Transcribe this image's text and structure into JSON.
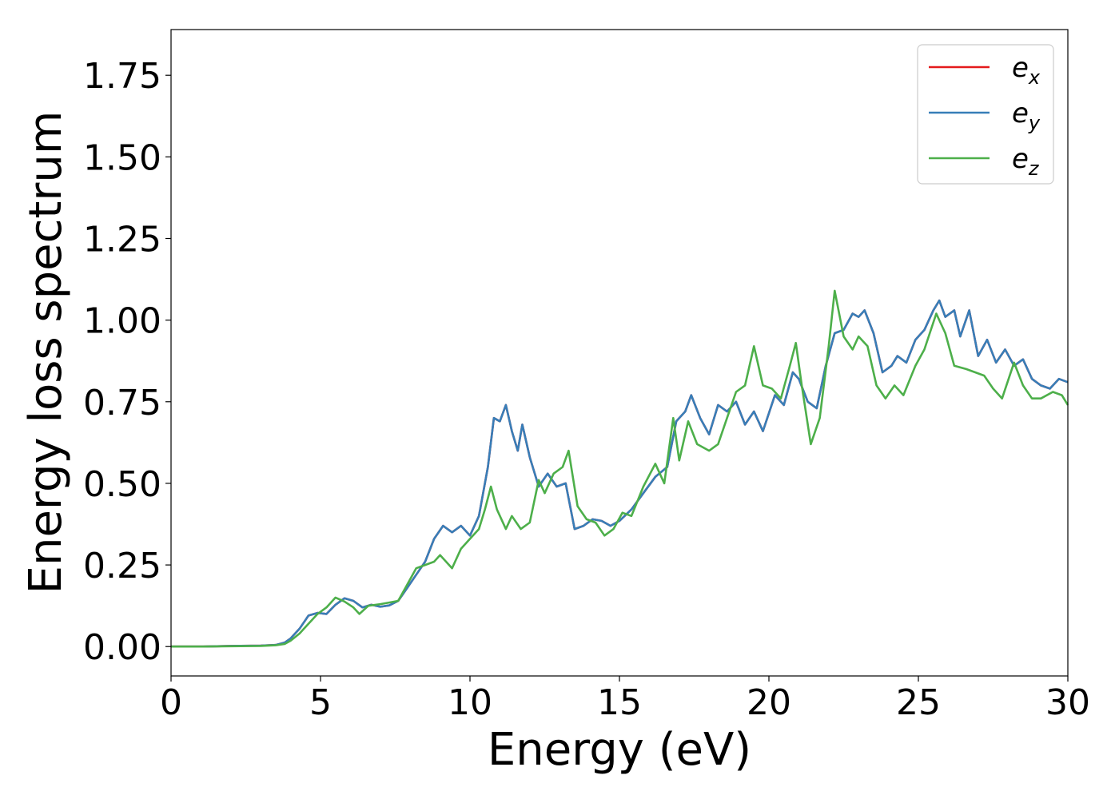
{
  "chart_data": {
    "type": "line",
    "title": "",
    "xlabel": "Energy (eV)",
    "ylabel": "Energy loss spectrum",
    "xlim": [
      0,
      30
    ],
    "ylim": [
      -0.09,
      1.89
    ],
    "xticks": [
      "0",
      "5",
      "10",
      "15",
      "20",
      "25",
      "30"
    ],
    "yticks": [
      "0.00",
      "0.25",
      "0.50",
      "0.75",
      "1.00",
      "1.25",
      "1.50",
      "1.75"
    ],
    "grid": false,
    "legend_position": "top-right",
    "series": [
      {
        "name": "e_x",
        "legend_base": "e",
        "legend_sub": "x",
        "color": "#e41a1c",
        "points": [
          [
            0,
            0
          ],
          [
            1,
            0.0
          ],
          [
            2,
            0.002
          ],
          [
            3,
            0.003
          ],
          [
            3.5,
            0.005
          ],
          [
            3.8,
            0.012
          ],
          [
            4.0,
            0.025
          ],
          [
            4.3,
            0.055
          ],
          [
            4.6,
            0.095
          ],
          [
            4.9,
            0.103
          ],
          [
            5.2,
            0.1
          ],
          [
            5.5,
            0.128
          ],
          [
            5.8,
            0.148
          ],
          [
            6.1,
            0.14
          ],
          [
            6.4,
            0.12
          ],
          [
            6.7,
            0.128
          ],
          [
            7.0,
            0.122
          ],
          [
            7.3,
            0.126
          ],
          [
            7.6,
            0.14
          ],
          [
            7.9,
            0.18
          ],
          [
            8.2,
            0.22
          ],
          [
            8.5,
            0.26
          ],
          [
            8.8,
            0.33
          ],
          [
            9.1,
            0.37
          ],
          [
            9.4,
            0.35
          ],
          [
            9.7,
            0.37
          ],
          [
            10.0,
            0.34
          ],
          [
            10.3,
            0.4
          ],
          [
            10.6,
            0.55
          ],
          [
            10.8,
            0.7
          ],
          [
            11.0,
            0.69
          ],
          [
            11.2,
            0.74
          ],
          [
            11.4,
            0.66
          ],
          [
            11.6,
            0.6
          ],
          [
            11.75,
            0.68
          ],
          [
            12.0,
            0.58
          ],
          [
            12.3,
            0.49
          ],
          [
            12.6,
            0.53
          ],
          [
            12.9,
            0.49
          ],
          [
            13.2,
            0.5
          ],
          [
            13.5,
            0.36
          ],
          [
            13.8,
            0.37
          ],
          [
            14.1,
            0.39
          ],
          [
            14.4,
            0.385
          ],
          [
            14.7,
            0.37
          ],
          [
            15.0,
            0.385
          ],
          [
            15.4,
            0.42
          ],
          [
            15.8,
            0.47
          ],
          [
            16.2,
            0.52
          ],
          [
            16.6,
            0.55
          ],
          [
            16.9,
            0.69
          ],
          [
            17.2,
            0.72
          ],
          [
            17.4,
            0.77
          ],
          [
            17.7,
            0.7
          ],
          [
            18.0,
            0.65
          ],
          [
            18.3,
            0.74
          ],
          [
            18.6,
            0.72
          ],
          [
            18.9,
            0.75
          ],
          [
            19.2,
            0.68
          ],
          [
            19.5,
            0.72
          ],
          [
            19.8,
            0.66
          ],
          [
            20.2,
            0.77
          ],
          [
            20.5,
            0.74
          ],
          [
            20.8,
            0.84
          ],
          [
            21.0,
            0.82
          ],
          [
            21.3,
            0.75
          ],
          [
            21.6,
            0.73
          ],
          [
            21.9,
            0.86
          ],
          [
            22.2,
            0.96
          ],
          [
            22.5,
            0.97
          ],
          [
            22.8,
            1.02
          ],
          [
            23.0,
            1.01
          ],
          [
            23.2,
            1.03
          ],
          [
            23.5,
            0.96
          ],
          [
            23.8,
            0.84
          ],
          [
            24.1,
            0.86
          ],
          [
            24.3,
            0.89
          ],
          [
            24.6,
            0.87
          ],
          [
            24.9,
            0.94
          ],
          [
            25.2,
            0.97
          ],
          [
            25.5,
            1.03
          ],
          [
            25.7,
            1.06
          ],
          [
            25.9,
            1.01
          ],
          [
            26.2,
            1.03
          ],
          [
            26.4,
            0.95
          ],
          [
            26.7,
            1.03
          ],
          [
            27.0,
            0.89
          ],
          [
            27.3,
            0.94
          ],
          [
            27.6,
            0.87
          ],
          [
            27.9,
            0.91
          ],
          [
            28.2,
            0.86
          ],
          [
            28.5,
            0.88
          ],
          [
            28.8,
            0.82
          ],
          [
            29.1,
            0.8
          ],
          [
            29.4,
            0.79
          ],
          [
            29.7,
            0.82
          ],
          [
            30.0,
            0.81
          ]
        ]
      },
      {
        "name": "e_y",
        "legend_base": "e",
        "legend_sub": "y",
        "color": "#377eb8",
        "points": [
          [
            0,
            0
          ],
          [
            1,
            0.0
          ],
          [
            2,
            0.002
          ],
          [
            3,
            0.003
          ],
          [
            3.5,
            0.005
          ],
          [
            3.8,
            0.012
          ],
          [
            4.0,
            0.025
          ],
          [
            4.3,
            0.055
          ],
          [
            4.6,
            0.095
          ],
          [
            4.9,
            0.103
          ],
          [
            5.2,
            0.1
          ],
          [
            5.5,
            0.128
          ],
          [
            5.8,
            0.148
          ],
          [
            6.1,
            0.14
          ],
          [
            6.4,
            0.12
          ],
          [
            6.7,
            0.128
          ],
          [
            7.0,
            0.122
          ],
          [
            7.3,
            0.126
          ],
          [
            7.6,
            0.14
          ],
          [
            7.9,
            0.18
          ],
          [
            8.2,
            0.22
          ],
          [
            8.5,
            0.26
          ],
          [
            8.8,
            0.33
          ],
          [
            9.1,
            0.37
          ],
          [
            9.4,
            0.35
          ],
          [
            9.7,
            0.37
          ],
          [
            10.0,
            0.34
          ],
          [
            10.3,
            0.4
          ],
          [
            10.6,
            0.55
          ],
          [
            10.8,
            0.7
          ],
          [
            11.0,
            0.69
          ],
          [
            11.2,
            0.74
          ],
          [
            11.4,
            0.66
          ],
          [
            11.6,
            0.6
          ],
          [
            11.75,
            0.68
          ],
          [
            12.0,
            0.58
          ],
          [
            12.3,
            0.49
          ],
          [
            12.6,
            0.53
          ],
          [
            12.9,
            0.49
          ],
          [
            13.2,
            0.5
          ],
          [
            13.5,
            0.36
          ],
          [
            13.8,
            0.37
          ],
          [
            14.1,
            0.39
          ],
          [
            14.4,
            0.385
          ],
          [
            14.7,
            0.37
          ],
          [
            15.0,
            0.385
          ],
          [
            15.4,
            0.42
          ],
          [
            15.8,
            0.47
          ],
          [
            16.2,
            0.52
          ],
          [
            16.6,
            0.55
          ],
          [
            16.9,
            0.69
          ],
          [
            17.2,
            0.72
          ],
          [
            17.4,
            0.77
          ],
          [
            17.7,
            0.7
          ],
          [
            18.0,
            0.65
          ],
          [
            18.3,
            0.74
          ],
          [
            18.6,
            0.72
          ],
          [
            18.9,
            0.75
          ],
          [
            19.2,
            0.68
          ],
          [
            19.5,
            0.72
          ],
          [
            19.8,
            0.66
          ],
          [
            20.2,
            0.77
          ],
          [
            20.5,
            0.74
          ],
          [
            20.8,
            0.84
          ],
          [
            21.0,
            0.82
          ],
          [
            21.3,
            0.75
          ],
          [
            21.6,
            0.73
          ],
          [
            21.9,
            0.86
          ],
          [
            22.2,
            0.96
          ],
          [
            22.5,
            0.97
          ],
          [
            22.8,
            1.02
          ],
          [
            23.0,
            1.01
          ],
          [
            23.2,
            1.03
          ],
          [
            23.5,
            0.96
          ],
          [
            23.8,
            0.84
          ],
          [
            24.1,
            0.86
          ],
          [
            24.3,
            0.89
          ],
          [
            24.6,
            0.87
          ],
          [
            24.9,
            0.94
          ],
          [
            25.2,
            0.97
          ],
          [
            25.5,
            1.03
          ],
          [
            25.7,
            1.06
          ],
          [
            25.9,
            1.01
          ],
          [
            26.2,
            1.03
          ],
          [
            26.4,
            0.95
          ],
          [
            26.7,
            1.03
          ],
          [
            27.0,
            0.89
          ],
          [
            27.3,
            0.94
          ],
          [
            27.6,
            0.87
          ],
          [
            27.9,
            0.91
          ],
          [
            28.2,
            0.86
          ],
          [
            28.5,
            0.88
          ],
          [
            28.8,
            0.82
          ],
          [
            29.1,
            0.8
          ],
          [
            29.4,
            0.79
          ],
          [
            29.7,
            0.82
          ],
          [
            30.0,
            0.81
          ]
        ]
      },
      {
        "name": "e_z",
        "legend_base": "e",
        "legend_sub": "z",
        "color": "#4daf4a",
        "points": [
          [
            0,
            0
          ],
          [
            1,
            0.0
          ],
          [
            2,
            0.001
          ],
          [
            3,
            0.002
          ],
          [
            3.5,
            0.004
          ],
          [
            3.8,
            0.008
          ],
          [
            4.0,
            0.018
          ],
          [
            4.3,
            0.04
          ],
          [
            4.6,
            0.07
          ],
          [
            4.9,
            0.1
          ],
          [
            5.2,
            0.12
          ],
          [
            5.5,
            0.15
          ],
          [
            5.8,
            0.138
          ],
          [
            6.1,
            0.12
          ],
          [
            6.3,
            0.1
          ],
          [
            6.6,
            0.125
          ],
          [
            7.0,
            0.13
          ],
          [
            7.3,
            0.135
          ],
          [
            7.6,
            0.14
          ],
          [
            7.9,
            0.19
          ],
          [
            8.2,
            0.24
          ],
          [
            8.5,
            0.25
          ],
          [
            8.8,
            0.26
          ],
          [
            9.0,
            0.28
          ],
          [
            9.2,
            0.26
          ],
          [
            9.4,
            0.24
          ],
          [
            9.7,
            0.3
          ],
          [
            10.0,
            0.33
          ],
          [
            10.3,
            0.36
          ],
          [
            10.5,
            0.42
          ],
          [
            10.7,
            0.49
          ],
          [
            10.9,
            0.42
          ],
          [
            11.2,
            0.36
          ],
          [
            11.4,
            0.4
          ],
          [
            11.7,
            0.36
          ],
          [
            12.0,
            0.38
          ],
          [
            12.3,
            0.51
          ],
          [
            12.5,
            0.47
          ],
          [
            12.8,
            0.53
          ],
          [
            13.1,
            0.55
          ],
          [
            13.3,
            0.6
          ],
          [
            13.6,
            0.43
          ],
          [
            13.9,
            0.39
          ],
          [
            14.2,
            0.38
          ],
          [
            14.5,
            0.34
          ],
          [
            14.8,
            0.36
          ],
          [
            15.1,
            0.41
          ],
          [
            15.4,
            0.4
          ],
          [
            15.8,
            0.49
          ],
          [
            16.2,
            0.56
          ],
          [
            16.5,
            0.5
          ],
          [
            16.8,
            0.7
          ],
          [
            17.0,
            0.57
          ],
          [
            17.3,
            0.69
          ],
          [
            17.6,
            0.62
          ],
          [
            18.0,
            0.6
          ],
          [
            18.3,
            0.62
          ],
          [
            18.6,
            0.7
          ],
          [
            18.9,
            0.78
          ],
          [
            19.2,
            0.8
          ],
          [
            19.5,
            0.92
          ],
          [
            19.8,
            0.8
          ],
          [
            20.1,
            0.79
          ],
          [
            20.4,
            0.76
          ],
          [
            20.7,
            0.86
          ],
          [
            20.9,
            0.93
          ],
          [
            21.1,
            0.8
          ],
          [
            21.4,
            0.62
          ],
          [
            21.7,
            0.7
          ],
          [
            22.0,
            0.92
          ],
          [
            22.2,
            1.09
          ],
          [
            22.5,
            0.95
          ],
          [
            22.8,
            0.91
          ],
          [
            23.0,
            0.95
          ],
          [
            23.3,
            0.92
          ],
          [
            23.6,
            0.8
          ],
          [
            23.9,
            0.76
          ],
          [
            24.2,
            0.8
          ],
          [
            24.5,
            0.77
          ],
          [
            24.9,
            0.86
          ],
          [
            25.2,
            0.91
          ],
          [
            25.6,
            1.02
          ],
          [
            25.9,
            0.96
          ],
          [
            26.2,
            0.86
          ],
          [
            26.6,
            0.85
          ],
          [
            26.9,
            0.84
          ],
          [
            27.2,
            0.83
          ],
          [
            27.5,
            0.79
          ],
          [
            27.8,
            0.76
          ],
          [
            28.2,
            0.87
          ],
          [
            28.5,
            0.8
          ],
          [
            28.8,
            0.76
          ],
          [
            29.1,
            0.76
          ],
          [
            29.5,
            0.78
          ],
          [
            29.8,
            0.77
          ],
          [
            30.0,
            0.74
          ]
        ]
      }
    ]
  }
}
